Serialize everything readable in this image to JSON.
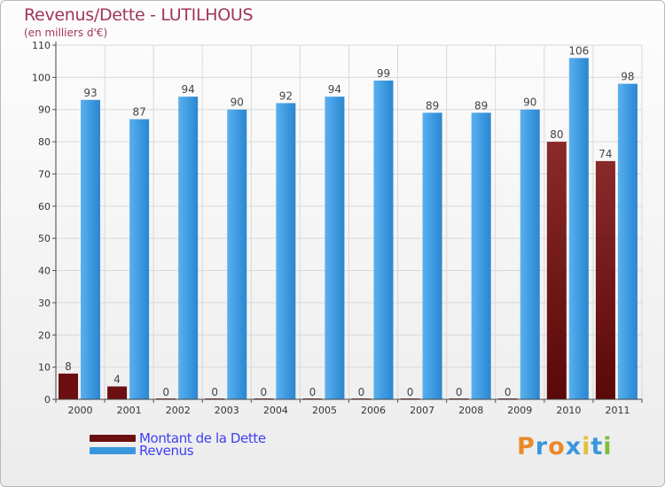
{
  "title": "Revenus/Dette - LUTILHOUS",
  "subtitle": "(en milliers d'€)",
  "logo_text": "Proxiti",
  "colors": {
    "debt": "#6b0f10",
    "revenue": "#3a97de",
    "axis_text": "#333333",
    "grid": "#d9d9d9",
    "title": "#a1355a",
    "legend_text": "#3f3ff0"
  },
  "chart_data": {
    "type": "bar",
    "title": "Revenus/Dette - LUTILHOUS",
    "subtitle": "(en milliers d'€)",
    "categories": [
      "2000",
      "2001",
      "2002",
      "2003",
      "2004",
      "2005",
      "2006",
      "2007",
      "2008",
      "2009",
      "2010",
      "2011"
    ],
    "series": [
      {
        "name": "Montant de la Dette",
        "values": [
          8,
          4,
          0,
          0,
          0,
          0,
          0,
          0,
          0,
          0,
          80,
          74
        ]
      },
      {
        "name": "Revenus",
        "values": [
          93,
          87,
          94,
          90,
          92,
          94,
          99,
          89,
          89,
          90,
          106,
          98
        ]
      }
    ],
    "ylim": [
      0,
      110
    ],
    "yticks": [
      0,
      10,
      20,
      30,
      40,
      50,
      60,
      70,
      80,
      90,
      100,
      110
    ],
    "grid": true,
    "legend": "bottom-left"
  }
}
